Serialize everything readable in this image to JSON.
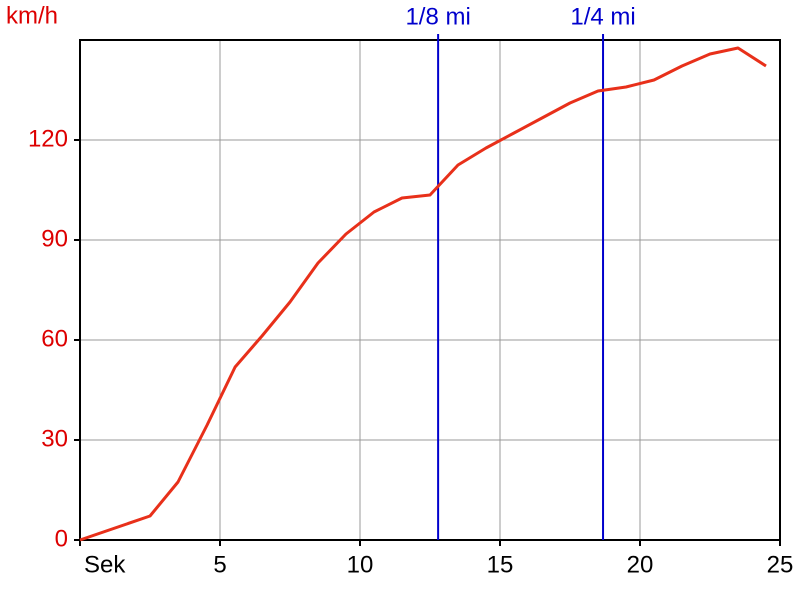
{
  "chart_data": {
    "type": "line",
    "y_label": "km/h",
    "x": [
      0,
      2.5,
      3.5,
      4.54,
      5.54,
      6.5,
      7.5,
      8.5,
      9.5,
      10.5,
      11.5,
      12.5,
      13.5,
      14.5,
      15.5,
      16.5,
      17.5,
      18.5,
      19.5,
      20.5,
      21.5,
      22.5,
      23.5,
      24.5
    ],
    "values": [
      0,
      7.2,
      17.4,
      34.5,
      51.9,
      61.2,
      71.4,
      83.1,
      91.8,
      98.4,
      102.6,
      103.5,
      112.5,
      117.6,
      122.1,
      126.6,
      131.1,
      134.7,
      135.9,
      138,
      142.2,
      145.8,
      147.6,
      142.2
    ],
    "color": "#e8301a",
    "xlim": [
      0,
      25
    ],
    "ylim": [
      0,
      150
    ],
    "xticks": [
      {
        "value": 0,
        "label": "Sek"
      },
      5,
      10,
      15,
      20,
      25
    ],
    "yticks": [
      0,
      30,
      60,
      90,
      120
    ],
    "grid": true,
    "markers": [
      {
        "label": "1/8 mi",
        "x": 12.79,
        "color": "#0000cc"
      },
      {
        "label": "1/4 mi",
        "x": 18.68,
        "color": "#0000cc"
      }
    ]
  }
}
